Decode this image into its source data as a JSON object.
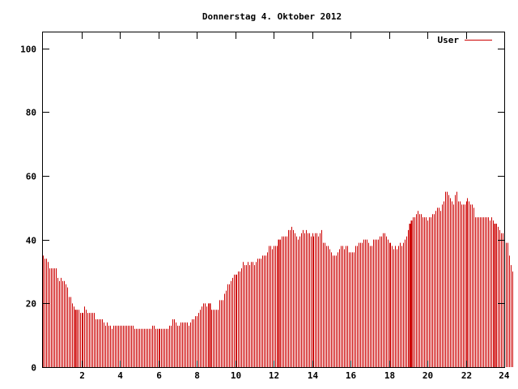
{
  "chart_data": {
    "type": "bar",
    "title": "Donnerstag 4. Oktober 2012",
    "xlabel": "",
    "ylabel": "",
    "xlim": [
      0,
      24
    ],
    "ylim": [
      0,
      105
    ],
    "grid": false,
    "legend_position": "top-right",
    "x_ticks": [
      "2",
      "4",
      "6",
      "8",
      "10",
      "12",
      "14",
      "16",
      "18",
      "20",
      "22",
      "24"
    ],
    "y_ticks": [
      "0",
      "20",
      "40",
      "60",
      "80",
      "100"
    ],
    "series": [
      {
        "name": "User",
        "color": "#cc0000",
        "interval_minutes": 5,
        "values": [
          35,
          34,
          34,
          33,
          31,
          31,
          31,
          31,
          31,
          28,
          27,
          28,
          27,
          27,
          26,
          25,
          22,
          22,
          20,
          19,
          18,
          18,
          18,
          17,
          17,
          17,
          19,
          18,
          17,
          17,
          17,
          17,
          17,
          15,
          15,
          15,
          15,
          15,
          14,
          13,
          14,
          13,
          13,
          12,
          13,
          13,
          13,
          13,
          13,
          13,
          13,
          13,
          13,
          13,
          13,
          13,
          13,
          12,
          12,
          12,
          12,
          12,
          12,
          12,
          12,
          12,
          12,
          12,
          13,
          13,
          12,
          12,
          12,
          12,
          12,
          12,
          12,
          12,
          12,
          13,
          13,
          15,
          15,
          14,
          13,
          13,
          14,
          14,
          14,
          14,
          14,
          13,
          14,
          15,
          15,
          16,
          16,
          17,
          18,
          19,
          20,
          20,
          19,
          20,
          20,
          18,
          18,
          18,
          18,
          18,
          21,
          21,
          21,
          23,
          24,
          26,
          26,
          27,
          28,
          29,
          29,
          29,
          30,
          30,
          31,
          33,
          32,
          32,
          33,
          32,
          33,
          33,
          32,
          33,
          34,
          34,
          34,
          35,
          35,
          35,
          36,
          38,
          38,
          37,
          38,
          38,
          38,
          40,
          40,
          41,
          41,
          41,
          41,
          43,
          43,
          44,
          43,
          42,
          41,
          40,
          41,
          42,
          43,
          42,
          43,
          42,
          42,
          41,
          42,
          41,
          42,
          42,
          41,
          42,
          43,
          39,
          39,
          38,
          38,
          37,
          36,
          35,
          35,
          35,
          36,
          37,
          38,
          38,
          37,
          38,
          38,
          36,
          36,
          36,
          36,
          38,
          38,
          39,
          39,
          39,
          40,
          40,
          40,
          39,
          38,
          38,
          40,
          40,
          40,
          40,
          41,
          41,
          42,
          42,
          41,
          40,
          39,
          39,
          38,
          37,
          38,
          37,
          38,
          39,
          38,
          39,
          40,
          41,
          43,
          45,
          46,
          47,
          47,
          48,
          49,
          48,
          48,
          47,
          47,
          47,
          46,
          47,
          47,
          48,
          48,
          49,
          50,
          50,
          49,
          51,
          52,
          55,
          55,
          54,
          53,
          52,
          51,
          54,
          55,
          52,
          52,
          51,
          51,
          51,
          52,
          53,
          52,
          51,
          51,
          50,
          47,
          47,
          47,
          47,
          47,
          47,
          47,
          47,
          47,
          46,
          47,
          46,
          45,
          45,
          44,
          43,
          42,
          42,
          41,
          39,
          39,
          35,
          32,
          30
        ]
      }
    ],
    "highlight_bars": [
      20,
      104,
      147,
      229,
      282,
      230
    ],
    "highlight_color": "#cc0000"
  }
}
